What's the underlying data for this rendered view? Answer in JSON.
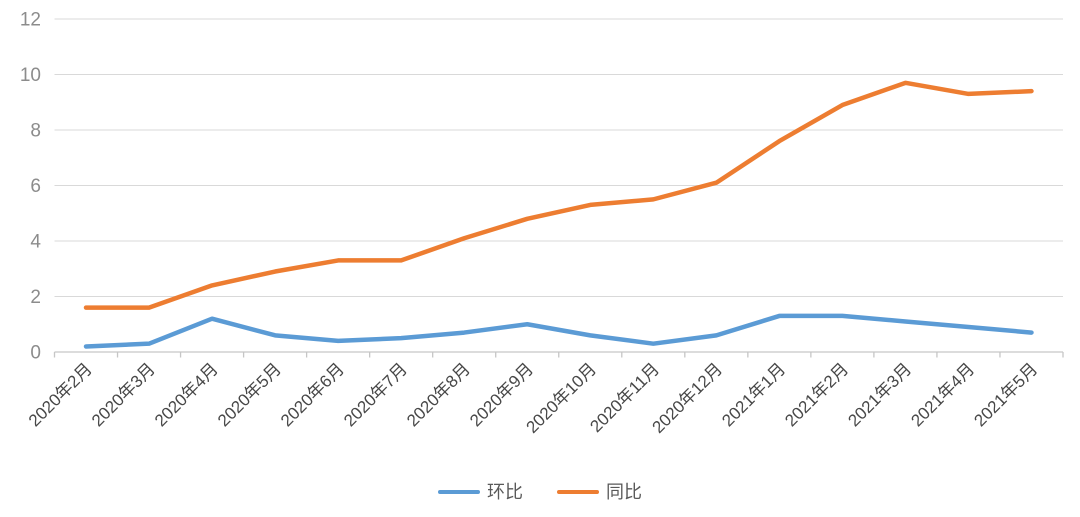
{
  "chart_data": {
    "type": "line",
    "title": "",
    "xlabel": "",
    "ylabel": "",
    "categories": [
      "2020年2月",
      "2020年3月",
      "2020年4月",
      "2020年5月",
      "2020年6月",
      "2020年7月",
      "2020年8月",
      "2020年9月",
      "2020年10月",
      "2020年11月",
      "2020年12月",
      "2021年1月",
      "2021年2月",
      "2021年3月",
      "2021年4月",
      "2021年5月"
    ],
    "series": [
      {
        "name": "环比",
        "color": "#5B9BD5",
        "values": [
          0.2,
          0.3,
          1.2,
          0.6,
          0.4,
          0.5,
          0.7,
          1.0,
          0.6,
          0.3,
          0.6,
          1.3,
          1.3,
          1.1,
          0.9,
          0.7
        ]
      },
      {
        "name": "同比",
        "color": "#ED7D31",
        "values": [
          1.6,
          1.6,
          2.4,
          2.9,
          3.3,
          3.3,
          4.1,
          4.8,
          5.3,
          5.5,
          6.1,
          7.6,
          8.9,
          9.7,
          9.3,
          9.4
        ]
      }
    ],
    "ylim": [
      0,
      12
    ],
    "yticks": [
      0,
      2,
      4,
      6,
      8,
      10,
      12
    ],
    "grid": true,
    "legend_position": "bottom",
    "x_label_rotation_deg": 45
  },
  "styles": {
    "gridline_color": "#d9d9d9",
    "axis_color": "#c6c6c6",
    "y_label_color": "#8c8c8c",
    "x_label_color": "#474747",
    "background": "#ffffff"
  }
}
